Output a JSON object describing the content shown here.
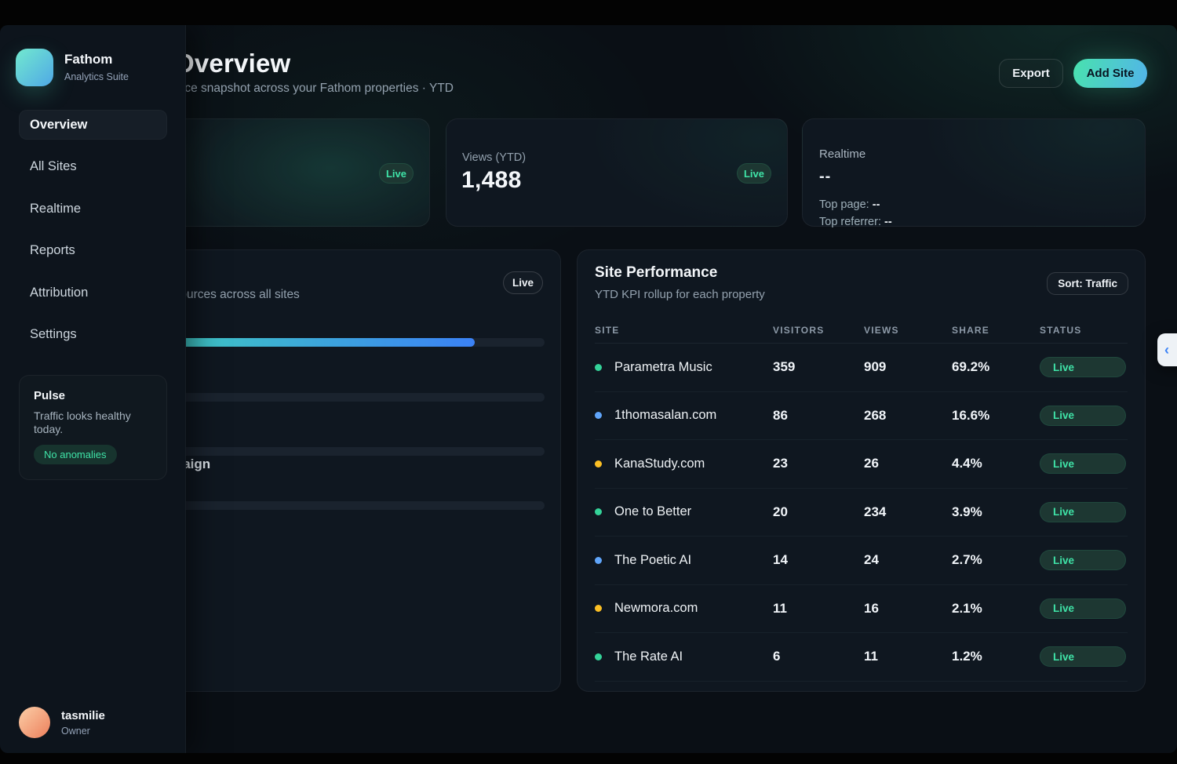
{
  "brand": {
    "name": "Fathom",
    "subtitle": "Analytics Suite"
  },
  "sidebar": {
    "nav": [
      {
        "label": "Overview",
        "active": true
      },
      {
        "label": "All Sites",
        "active": false
      },
      {
        "label": "Realtime",
        "active": false
      },
      {
        "label": "Reports",
        "active": false
      },
      {
        "label": "Attribution",
        "active": false
      },
      {
        "label": "Settings",
        "active": false
      }
    ],
    "pulse": {
      "title": "Pulse",
      "message": "Traffic looks healthy today.",
      "badge": "No anomalies"
    },
    "user": {
      "name": "tasmilie",
      "role": "Owner"
    }
  },
  "header": {
    "title": "Overview",
    "subtitle": "Performance snapshot across your Fathom properties · YTD",
    "export_label": "Export",
    "add_site_label": "Add Site"
  },
  "kpis": {
    "card1": {
      "live": "Live"
    },
    "views": {
      "label": "Views (YTD)",
      "value": "1,488",
      "live": "Live"
    },
    "realtime": {
      "label": "Realtime",
      "value": "--",
      "top_page_label": "Top page:",
      "top_page_value": "--",
      "top_referrer_label": "Top referrer:",
      "top_referrer_value": "--"
    }
  },
  "sources_card": {
    "subtitle": "Sources across all sites",
    "live": "Live",
    "campaign_label": "Campaign",
    "bars": [
      {
        "fill_pct": 84.5
      },
      {
        "fill_pct": 12
      },
      {
        "fill_pct": 8
      },
      {
        "fill_pct": 5
      }
    ]
  },
  "table": {
    "title": "Site Performance",
    "subtitle": "YTD KPI rollup for each property",
    "sort_label": "Sort: Traffic",
    "columns": [
      "SITE",
      "VISITORS",
      "VIEWS",
      "SHARE",
      "STATUS"
    ],
    "rows": [
      {
        "site": "Parametra Music",
        "dot": "#34d399",
        "visitors": "359",
        "views": "909",
        "share": "69.2%",
        "status": "Live"
      },
      {
        "site": "1thomasalan.com",
        "dot": "#60a5fa",
        "visitors": "86",
        "views": "268",
        "share": "16.6%",
        "status": "Live"
      },
      {
        "site": "KanaStudy.com",
        "dot": "#fbbf24",
        "visitors": "23",
        "views": "26",
        "share": "4.4%",
        "status": "Live"
      },
      {
        "site": "One to Better",
        "dot": "#34d399",
        "visitors": "20",
        "views": "234",
        "share": "3.9%",
        "status": "Live"
      },
      {
        "site": "The Poetic AI",
        "dot": "#60a5fa",
        "visitors": "14",
        "views": "24",
        "share": "2.7%",
        "status": "Live"
      },
      {
        "site": "Newmora.com",
        "dot": "#fbbf24",
        "visitors": "11",
        "views": "16",
        "share": "2.1%",
        "status": "Live"
      },
      {
        "site": "The Rate AI",
        "dot": "#34d399",
        "visitors": "6",
        "views": "11",
        "share": "1.2%",
        "status": "Live"
      }
    ]
  },
  "floating": {
    "collapse_icon": "‹"
  },
  "colors": {
    "accent_teal": "#3fe3a7",
    "accent_blue": "#3b82f6",
    "dot_green": "#34d399",
    "dot_blue": "#60a5fa",
    "dot_amber": "#fbbf24",
    "bg_window": "#0a0f15",
    "bg_sidebar": "#0d141c",
    "bg_card": "#0f1720"
  }
}
